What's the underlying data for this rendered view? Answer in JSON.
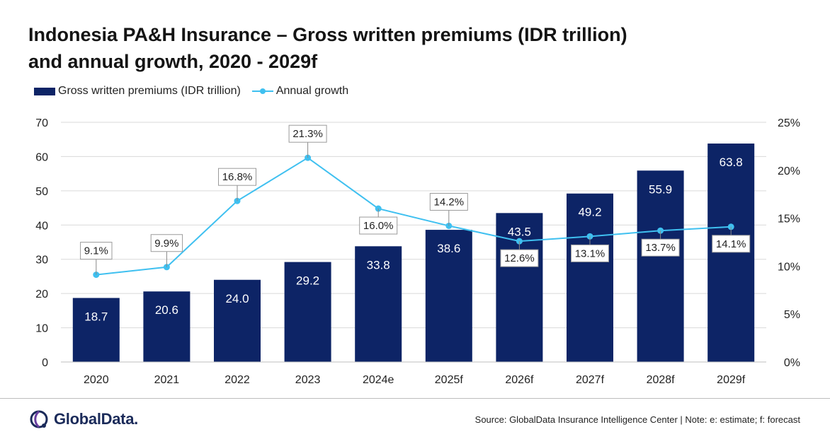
{
  "title_line1": "Indonesia PA&H Insurance – Gross written premiums (IDR trillion)",
  "title_line2": "and annual growth, 2020 - 2029f",
  "footer": {
    "logo_text": "GlobalData.",
    "source": "Source: GlobalData Insurance Intelligence Center  |  Note: e: estimate; f: forecast"
  },
  "colors": {
    "bar": "#0d2466",
    "line": "#3fc0f0",
    "grid": "#d9d9d9"
  },
  "chart_data": {
    "type": "bar",
    "title": "Indonesia PA&H Insurance – Gross written premiums (IDR trillion) and annual growth, 2020 - 2029f",
    "categories": [
      "2020",
      "2021",
      "2022",
      "2023",
      "2024e",
      "2025f",
      "2026f",
      "2027f",
      "2028f",
      "2029f"
    ],
    "series": [
      {
        "name": "Gross written premiums (IDR trillion)",
        "type": "bar",
        "axis": "left",
        "values": [
          18.7,
          20.6,
          24.0,
          29.2,
          33.8,
          38.6,
          43.5,
          49.2,
          55.9,
          63.8
        ],
        "labels": [
          "18.7",
          "20.6",
          "24.0",
          "29.2",
          "33.8",
          "38.6",
          "43.5",
          "49.2",
          "55.9",
          "63.8"
        ]
      },
      {
        "name": "Annual growth",
        "type": "line",
        "axis": "right",
        "values": [
          9.1,
          9.9,
          16.8,
          21.3,
          16.0,
          14.2,
          12.6,
          13.1,
          13.7,
          14.1
        ],
        "labels": [
          "9.1%",
          "9.9%",
          "16.8%",
          "21.3%",
          "16.0%",
          "14.2%",
          "12.6%",
          "13.1%",
          "13.7%",
          "14.1%"
        ]
      }
    ],
    "y_left": {
      "lim": [
        0,
        70
      ],
      "ticks": [
        0,
        10,
        20,
        30,
        40,
        50,
        60,
        70
      ],
      "tick_labels": [
        "0",
        "10",
        "20",
        "30",
        "40",
        "50",
        "60",
        "70"
      ]
    },
    "y_right": {
      "lim": [
        0,
        25
      ],
      "ticks": [
        0,
        5,
        10,
        15,
        20,
        25
      ],
      "tick_labels": [
        "0%",
        "5%",
        "10%",
        "15%",
        "20%",
        "25%"
      ]
    },
    "grid": true,
    "legend": "top-left",
    "growth_label_position": [
      "above",
      "above",
      "above",
      "above",
      "below",
      "above",
      "below",
      "below",
      "below",
      "below"
    ]
  }
}
